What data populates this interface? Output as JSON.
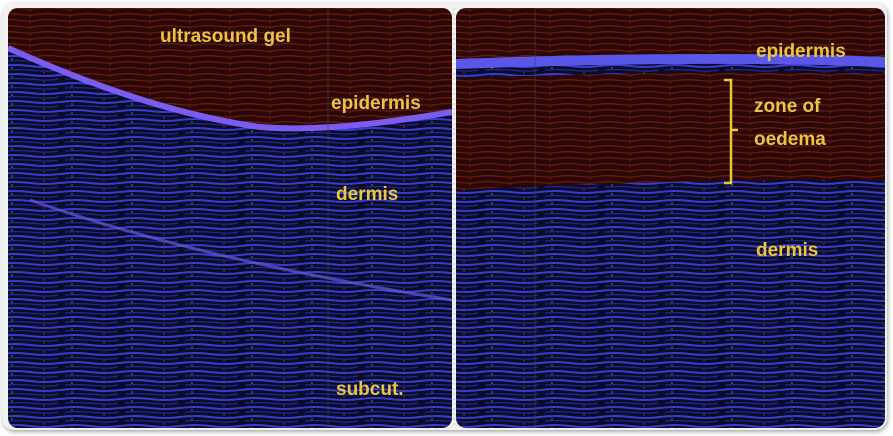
{
  "left_panel": {
    "labels": [
      "ultrasound gel",
      "epidermis",
      "dermis",
      "subcut."
    ]
  },
  "right_panel": {
    "labels": [
      "epidermis",
      "zone of",
      "oedema",
      "dermis"
    ]
  }
}
